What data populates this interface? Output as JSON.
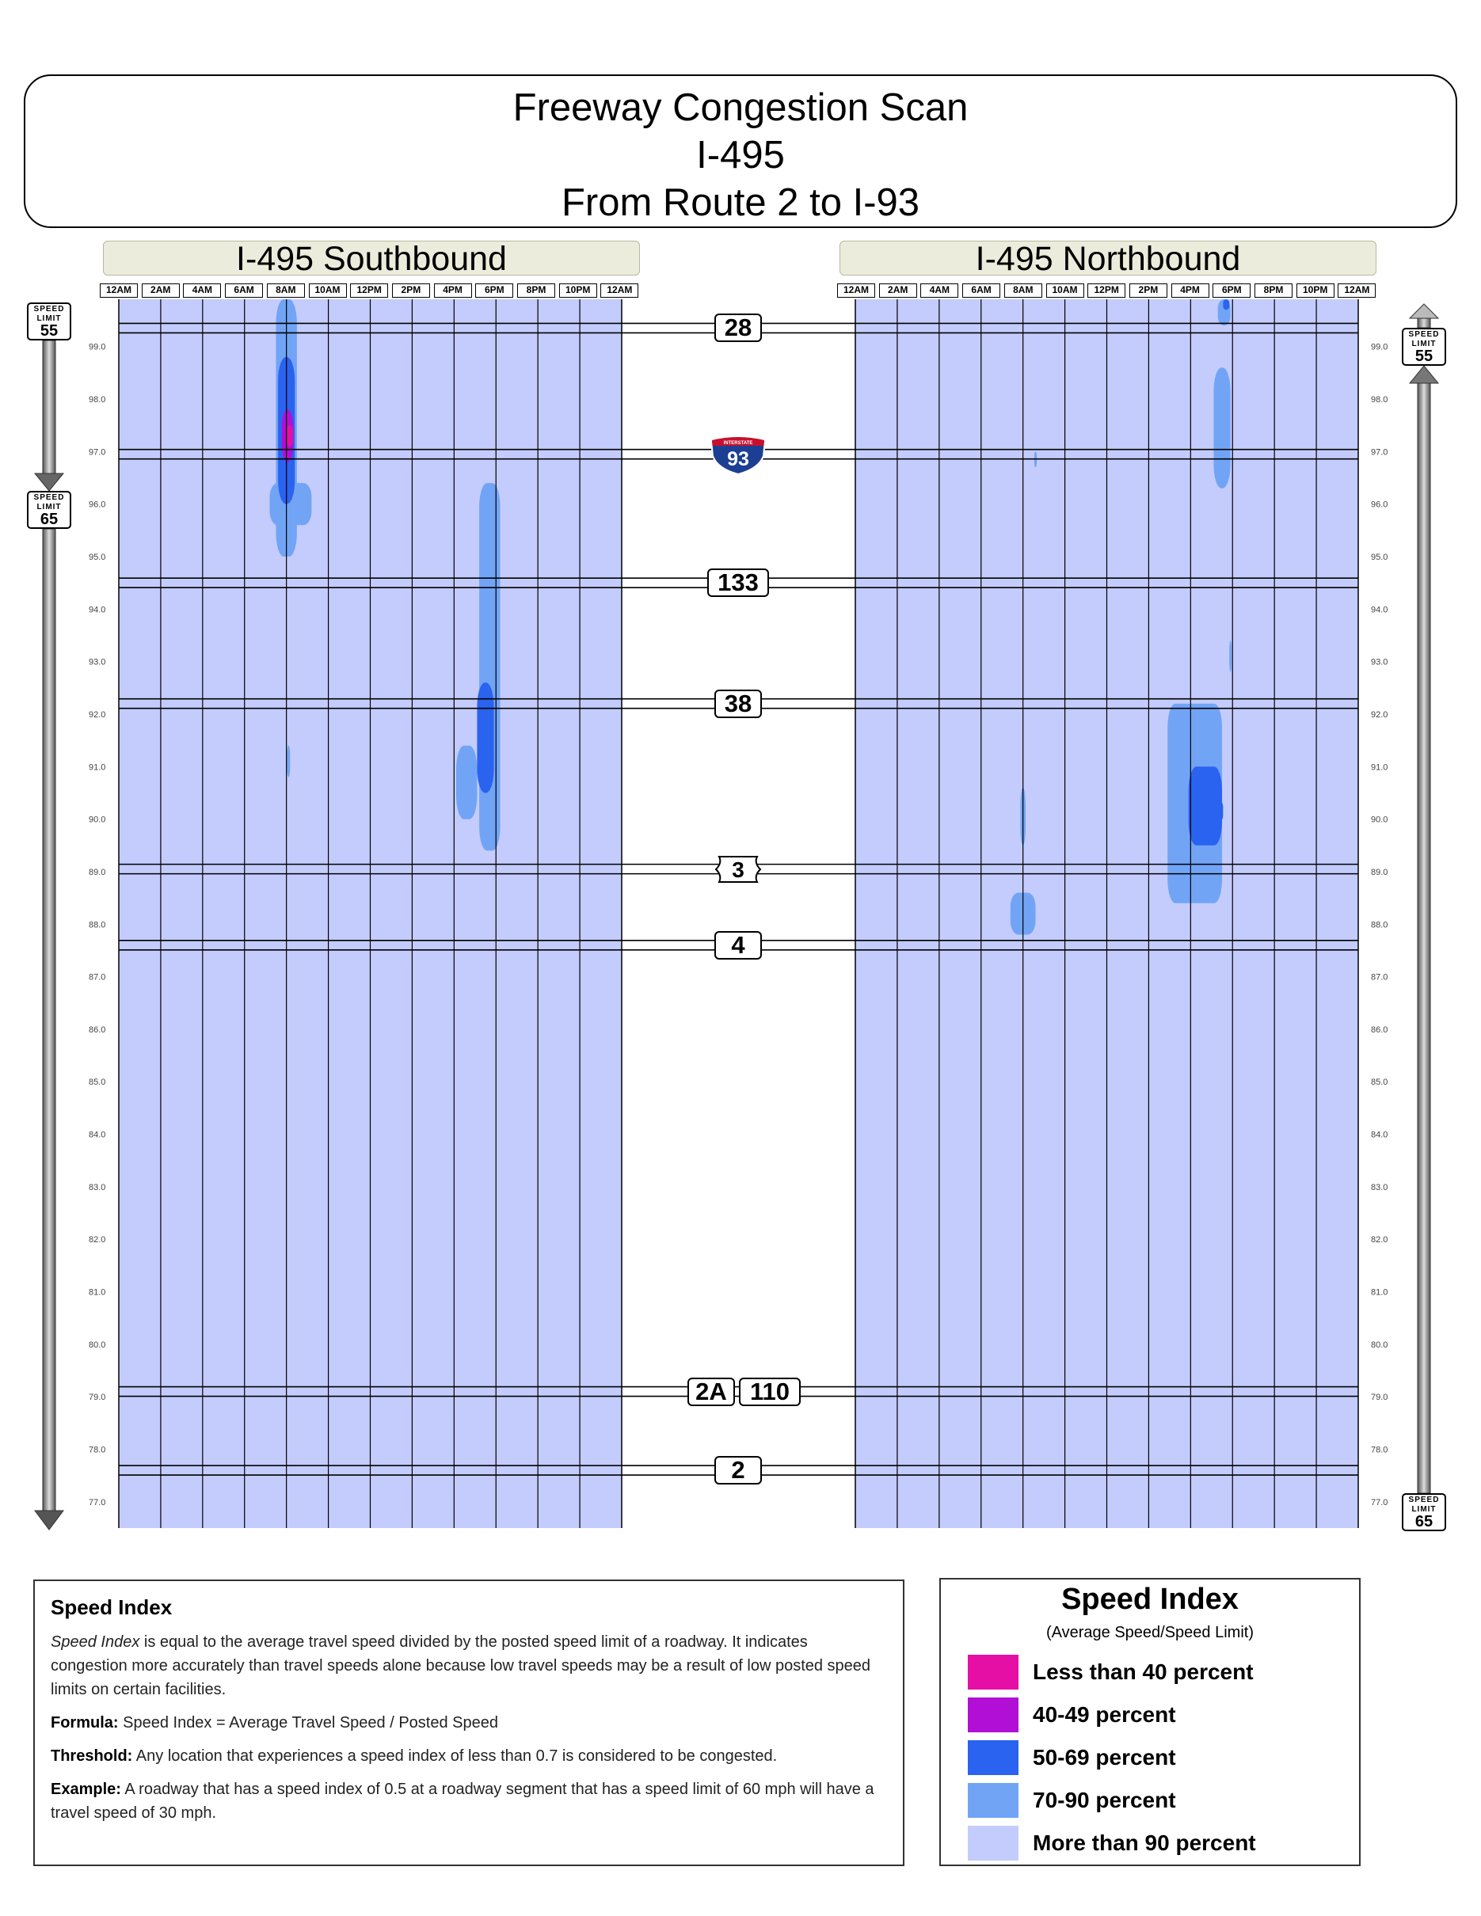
{
  "header": {
    "title": "Freeway Congestion Scan",
    "route": "I-495",
    "extent": "From Route 2 to I-93"
  },
  "panels": {
    "southbound_title": "I-495 Southbound",
    "northbound_title": "I-495 Northbound"
  },
  "hour_labels": [
    "12AM",
    "2AM",
    "4AM",
    "6AM",
    "8AM",
    "10AM",
    "12PM",
    "2PM",
    "4PM",
    "6PM",
    "8PM",
    "10PM",
    "12AM"
  ],
  "speed_signs": [
    {
      "line1": "SPEED",
      "line2": "LIMIT",
      "value": "55"
    },
    {
      "line1": "SPEED",
      "line2": "LIMIT",
      "value": "65"
    },
    {
      "line1": "SPEED",
      "line2": "LIMIT",
      "value": "55"
    },
    {
      "line1": "SPEED",
      "line2": "LIMIT",
      "value": "65"
    }
  ],
  "interchanges": [
    {
      "label": "28",
      "mile": 99.35,
      "style": "route"
    },
    {
      "label": "93",
      "badge": "INTERSTATE",
      "mile": 96.95,
      "style": "interstate"
    },
    {
      "label": "133",
      "mile": 94.5,
      "style": "route"
    },
    {
      "label": "38",
      "mile": 92.2,
      "style": "route"
    },
    {
      "label": "3",
      "mile": 89.05,
      "style": "us"
    },
    {
      "label": "4",
      "mile": 87.6,
      "style": "route"
    },
    {
      "label": "2A",
      "label2": "110",
      "mile": 79.1,
      "style": "double"
    },
    {
      "label": "2",
      "mile": 77.6,
      "style": "route"
    }
  ],
  "info": {
    "heading": "Speed Index",
    "para_term": "Speed Index",
    "para_rest": " is equal to the average travel speed divided by the posted speed limit of a roadway. It indicates congestion more accurately than travel speeds alone because low travel speeds may be a result of low posted speed limits on certain facilities.",
    "formula_label": "Formula:",
    "formula_text": " Speed Index = Average Travel Speed / Posted Speed",
    "threshold_label": "Threshold:",
    "threshold_text": " Any location that experiences a speed index of less than 0.7 is considered to be congested.",
    "example_label": "Example:",
    "example_text": " A roadway that has a speed index of 0.5 at a roadway segment that has a speed limit of 60 mph will have a travel speed of 30 mph."
  },
  "legend": {
    "title": "Speed Index",
    "subtitle": "(Average Speed/Speed Limit)",
    "items": [
      {
        "label": "Less than 40 percent",
        "color": "#e60fa6"
      },
      {
        "label": "40-49 percent",
        "color": "#b20fd6"
      },
      {
        "label": "50-69 percent",
        "color": "#2a63ef"
      },
      {
        "label": "70-90 percent",
        "color": "#72a4f6"
      },
      {
        "label": "More than 90 percent",
        "color": "#c3ccfc"
      }
    ]
  },
  "chart_data": {
    "type": "heatmap",
    "x_unit": "hour",
    "xlim": [
      0,
      24
    ],
    "y_unit": "mile",
    "ylim": [
      76.5,
      99.9
    ],
    "y_ticks": [
      "99.0",
      "98.0",
      "97.0",
      "96.0",
      "95.0",
      "94.0",
      "93.0",
      "92.0",
      "91.0",
      "90.0",
      "89.0",
      "88.0",
      "87.0",
      "86.0",
      "85.0",
      "84.0",
      "83.0",
      "82.0",
      "81.0",
      "80.0",
      "79.0",
      "78.0",
      "77.0"
    ],
    "colors": {
      "lt40": "#e60fa6",
      "p40_49": "#b20fd6",
      "p50_69": "#2a63ef",
      "p70_90": "#72a4f6",
      "gt90": "#c3ccfc"
    },
    "series": [
      {
        "name": "I-495 Southbound",
        "congestion": [
          {
            "level": "p70_90",
            "hour": 8.0,
            "hour_span": 1.0,
            "mile_top": 99.9,
            "mile_bottom": 95.0
          },
          {
            "level": "p70_90",
            "hour": 8.2,
            "hour_span": 2.0,
            "mile_top": 96.4,
            "mile_bottom": 95.6
          },
          {
            "level": "p70_90",
            "hour": 7.7,
            "hour_span": 0.4,
            "mile_top": 96.4,
            "mile_bottom": 96.1
          },
          {
            "level": "p50_69",
            "hour": 8.0,
            "hour_span": 0.8,
            "mile_top": 98.8,
            "mile_bottom": 96.0
          },
          {
            "level": "p40_49",
            "hour": 8.05,
            "hour_span": 0.55,
            "mile_top": 97.8,
            "mile_bottom": 96.8
          },
          {
            "level": "lt40",
            "hour": 8.15,
            "hour_span": 0.35,
            "mile_top": 97.5,
            "mile_bottom": 97.1
          },
          {
            "level": "p70_90",
            "hour": 8.1,
            "hour_span": 0.15,
            "mile_top": 91.4,
            "mile_bottom": 90.8
          },
          {
            "level": "p70_90",
            "hour": 17.7,
            "hour_span": 1.0,
            "mile_top": 96.4,
            "mile_bottom": 89.4
          },
          {
            "level": "p70_90",
            "hour": 16.6,
            "hour_span": 1.0,
            "mile_top": 91.4,
            "mile_bottom": 90.0
          },
          {
            "level": "p50_69",
            "hour": 17.5,
            "hour_span": 0.8,
            "mile_top": 92.6,
            "mile_bottom": 90.5
          },
          {
            "level": "p50_69",
            "hour": 17.6,
            "hour_span": 0.3,
            "mile_top": 91.2,
            "mile_bottom": 90.8
          }
        ]
      },
      {
        "name": "I-495 Northbound",
        "congestion": [
          {
            "level": "p70_90",
            "hour": 17.6,
            "hour_span": 0.6,
            "mile_top": 99.9,
            "mile_bottom": 99.4
          },
          {
            "level": "p50_69",
            "hour": 17.7,
            "hour_span": 0.3,
            "mile_top": 99.9,
            "mile_bottom": 99.7
          },
          {
            "level": "p70_90",
            "hour": 17.5,
            "hour_span": 0.8,
            "mile_top": 98.6,
            "mile_bottom": 96.3
          },
          {
            "level": "p70_90",
            "hour": 8.6,
            "hour_span": 0.12,
            "mile_top": 97.0,
            "mile_bottom": 96.7
          },
          {
            "level": "p70_90",
            "hour": 17.9,
            "hour_span": 0.1,
            "mile_top": 93.4,
            "mile_bottom": 92.8
          },
          {
            "level": "p70_90",
            "hour": 16.2,
            "hour_span": 2.6,
            "mile_top": 92.2,
            "mile_bottom": 88.4
          },
          {
            "level": "p50_69",
            "hour": 16.7,
            "hour_span": 1.6,
            "mile_top": 91.0,
            "mile_bottom": 89.5
          },
          {
            "level": "p50_69",
            "hour": 17.1,
            "hour_span": 0.9,
            "mile_top": 90.4,
            "mile_bottom": 89.9
          },
          {
            "level": "p70_90",
            "hour": 8.0,
            "hour_span": 0.25,
            "mile_top": 90.6,
            "mile_bottom": 89.5
          },
          {
            "level": "p70_90",
            "hour": 8.0,
            "hour_span": 1.2,
            "mile_top": 88.6,
            "mile_bottom": 87.8
          }
        ]
      }
    ]
  }
}
